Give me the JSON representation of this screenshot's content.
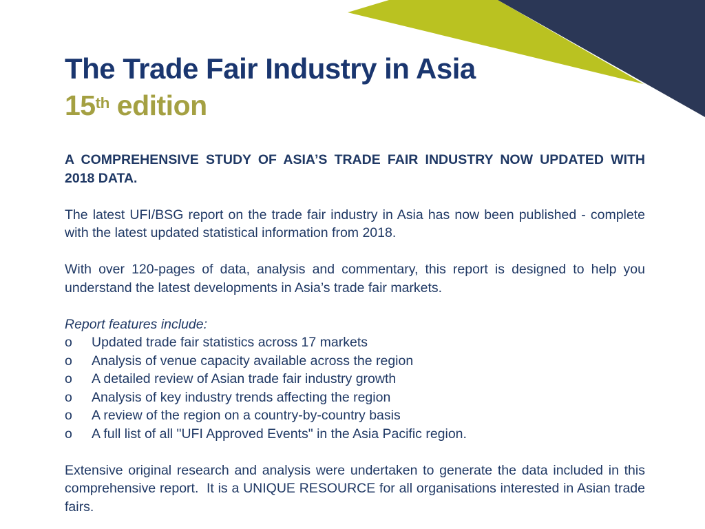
{
  "colors": {
    "background": "#ffffff",
    "navy_triangle": "#2b3756",
    "green_accent": "#bac221",
    "title_navy": "#1a366f",
    "edition_gold": "#a4a042",
    "body_text": "#1f3864"
  },
  "header": {
    "title": "The Trade Fair Industry in Asia",
    "edition_number": "15",
    "edition_suffix": "th",
    "edition_word": " edition"
  },
  "content": {
    "intro": "A COMPREHENSIVE STUDY OF ASIA’S TRADE FAIR INDUSTRY NOW UPDATED WITH 2018 DATA.",
    "para1": "The latest UFI/BSG report on the trade fair industry in Asia has now been published - complete with the latest updated statistical information from 2018.",
    "para2": "With over 120-pages of data, analysis and commentary, this report is designed to help you understand the latest developments in Asia’s trade fair markets.",
    "features_heading": "Report features include:",
    "bullet_marker": "o",
    "bullets": [
      "Updated trade fair statistics across 17 markets",
      "Analysis of venue capacity available across the region",
      "A detailed review of Asian trade fair industry growth",
      "Analysis of key industry trends affecting the region",
      "A review of the region on a country-by-country basis",
      "A full list of all \"UFI Approved Events\" in the Asia Pacific region."
    ],
    "closing": "Extensive original research and analysis were undertaken to generate the data included in this comprehensive report.  It is a UNIQUE RESOURCE for all organisations interested in Asian trade fairs."
  }
}
